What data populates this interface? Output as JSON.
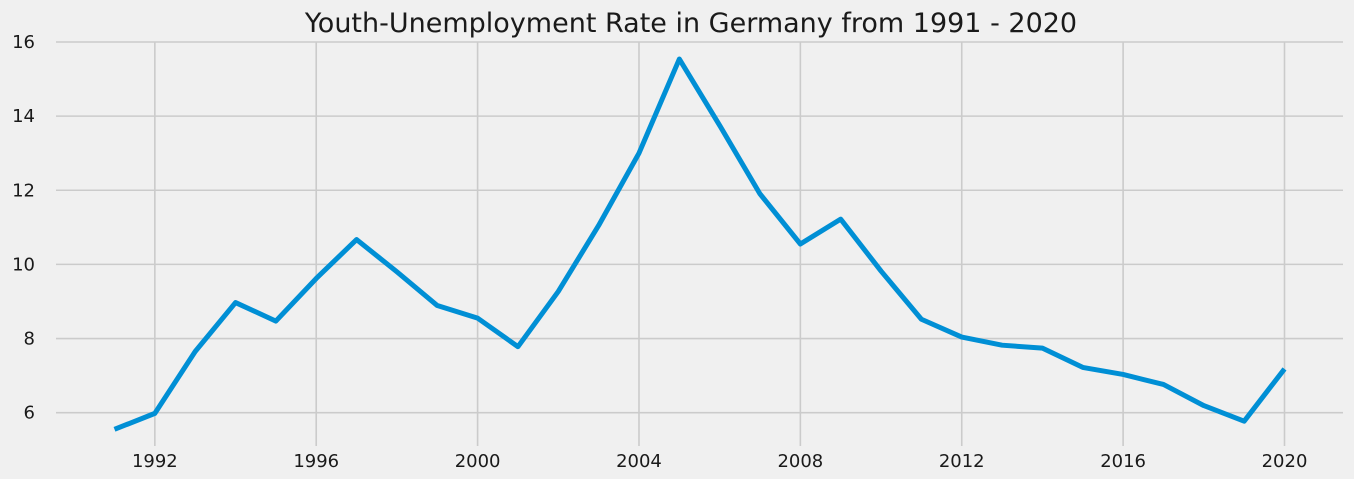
{
  "chart_data": {
    "type": "line",
    "title": "Youth-Unemployment Rate in Germany from 1991 - 2020",
    "xlabel": "",
    "ylabel": "",
    "x": [
      1991,
      1992,
      1993,
      1994,
      1995,
      1996,
      1997,
      1998,
      1999,
      2000,
      2001,
      2002,
      2003,
      2004,
      2005,
      2006,
      2007,
      2008,
      2009,
      2010,
      2011,
      2012,
      2013,
      2014,
      2015,
      2016,
      2017,
      2018,
      2019,
      2020
    ],
    "series": [
      {
        "values": [
          5.55,
          5.98,
          7.65,
          8.97,
          8.47,
          9.62,
          10.67,
          9.8,
          8.89,
          8.55,
          7.78,
          9.27,
          11.05,
          13.0,
          15.54,
          13.75,
          11.9,
          10.55,
          11.22,
          9.82,
          8.52,
          8.04,
          7.82,
          7.74,
          7.22,
          7.03,
          6.76,
          6.19,
          5.77,
          7.18
        ],
        "color": "#008fd5"
      }
    ],
    "xticks": [
      1992,
      1996,
      2000,
      2004,
      2008,
      2012,
      2016,
      2020
    ],
    "yticks": [
      6,
      8,
      10,
      12,
      14,
      16
    ],
    "xlim": [
      1989.55,
      1921.45
    ],
    "ylim": [
      5.1,
      16.0
    ],
    "grid": true,
    "background": "#f0f0f0",
    "grid_color": "#cbcbcb"
  }
}
